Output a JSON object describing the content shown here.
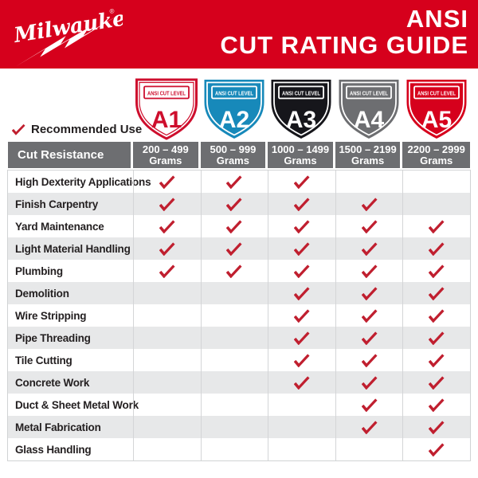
{
  "banner": {
    "logo_text": "Milwaukee",
    "logo_mark": "®",
    "title_line1": "ANSI",
    "title_line2": "CUT RATING GUIDE"
  },
  "recommended": {
    "label": "Recommended Use"
  },
  "colors": {
    "brand_red": "#d6001c",
    "check_red": "#c01f2f",
    "header_gray": "#6d6e71",
    "row_alt_gray": "#e7e8e9",
    "badge_blue": "#1789ba",
    "badge_black": "#16161b",
    "badge_border_red": "#ce0e2d",
    "divider_gray": "#d4d5d7"
  },
  "badges": [
    {
      "level": "A1",
      "label": "ANSI CUT LEVEL",
      "fill": "#ffffff",
      "border": "#ce0e2d",
      "accent": "#ce0e2d"
    },
    {
      "level": "A2",
      "label": "ANSI CUT LEVEL",
      "fill": "#1789ba",
      "border": "#1789ba",
      "accent": "#ffffff"
    },
    {
      "level": "A3",
      "label": "ANSI CUT LEVEL",
      "fill": "#16161b",
      "border": "#16161b",
      "accent": "#ffffff"
    },
    {
      "level": "A4",
      "label": "ANSI CUT LEVEL",
      "fill": "#6d6e71",
      "border": "#6d6e71",
      "accent": "#ffffff"
    },
    {
      "level": "A5",
      "label": "ANSI CUT LEVEL",
      "fill": "#d6001c",
      "border": "#d6001c",
      "accent": "#ffffff"
    }
  ],
  "table": {
    "corner_header": "Cut Resistance",
    "columns": [
      {
        "range": "200 – 499",
        "unit": "Grams"
      },
      {
        "range": "500 – 999",
        "unit": "Grams"
      },
      {
        "range": "1000 – 1499",
        "unit": "Grams"
      },
      {
        "range": "1500 – 2199",
        "unit": "Grams"
      },
      {
        "range": "2200 – 2999",
        "unit": "Grams"
      }
    ],
    "rows": [
      {
        "label": "High Dexterity Applications",
        "checks": [
          true,
          true,
          true,
          false,
          false
        ]
      },
      {
        "label": "Finish Carpentry",
        "checks": [
          true,
          true,
          true,
          true,
          false
        ]
      },
      {
        "label": "Yard Maintenance",
        "checks": [
          true,
          true,
          true,
          true,
          true
        ]
      },
      {
        "label": "Light Material Handling",
        "checks": [
          true,
          true,
          true,
          true,
          true
        ]
      },
      {
        "label": "Plumbing",
        "checks": [
          true,
          true,
          true,
          true,
          true
        ]
      },
      {
        "label": "Demolition",
        "checks": [
          false,
          false,
          true,
          true,
          true
        ]
      },
      {
        "label": "Wire Stripping",
        "checks": [
          false,
          false,
          true,
          true,
          true
        ]
      },
      {
        "label": "Pipe Threading",
        "checks": [
          false,
          false,
          true,
          true,
          true
        ]
      },
      {
        "label": "Tile Cutting",
        "checks": [
          false,
          false,
          true,
          true,
          true
        ]
      },
      {
        "label": "Concrete Work",
        "checks": [
          false,
          false,
          true,
          true,
          true
        ]
      },
      {
        "label": "Duct & Sheet Metal Work",
        "checks": [
          false,
          false,
          false,
          true,
          true
        ]
      },
      {
        "label": "Metal Fabrication",
        "checks": [
          false,
          false,
          false,
          true,
          true
        ]
      },
      {
        "label": "Glass Handling",
        "checks": [
          false,
          false,
          false,
          false,
          true
        ]
      }
    ]
  }
}
